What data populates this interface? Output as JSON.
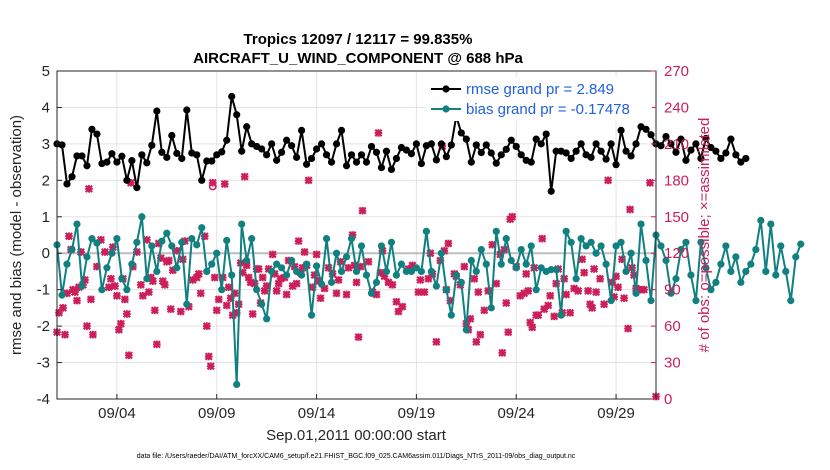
{
  "chart_data": {
    "type": "line",
    "title": "Tropics 12097 / 12117 = 99.835%",
    "subtitle": "AIRCRAFT_U_WIND_COMPONENT @ 688 hPa",
    "xlabel": "Sep.01,2011 00:00:00 start",
    "ylabel_left": "rmse and bias (model - observation)",
    "ylabel_right": "# of obs: o=possible; ×=assimilated",
    "footer": "data file: /Users/raeder/DAI/ATM_forcXX/CAM6_setup/f.e21.FHIST_BGC.f09_025.CAM6assim.011/Diags_NTrS_2011-09/obs_diag_output.nc",
    "xlim": [
      1.0,
      31.0
    ],
    "ylim_left": [
      -4,
      5
    ],
    "ylim_right": [
      0,
      270
    ],
    "x_ticks": [
      4,
      9,
      14,
      19,
      24,
      29
    ],
    "x_tick_labels": [
      "09/04",
      "09/09",
      "09/14",
      "09/19",
      "09/24",
      "09/29"
    ],
    "y_ticks_left": [
      -4,
      -3,
      -2,
      -1,
      0,
      1,
      2,
      3,
      4,
      5
    ],
    "y_tick_labels_left": [
      "-4",
      "-3",
      "-2",
      "-1",
      "0",
      "1",
      "2",
      "3",
      "4",
      "5"
    ],
    "y_ticks_right": [
      0,
      30,
      60,
      90,
      120,
      150,
      180,
      210,
      240,
      270
    ],
    "y_tick_labels_right": [
      "0",
      "30",
      "60",
      "90",
      "120",
      "150",
      "180",
      "210",
      "240",
      "270"
    ],
    "grid": true,
    "legend_position": "top-right",
    "x_start": 1.0,
    "x_step": 0.25,
    "series": [
      {
        "name": "rmse grand pr = 2.849",
        "axis": "left",
        "color": "#000000",
        "marker": "circle",
        "values": [
          3.0,
          2.97,
          1.9,
          2.1,
          2.67,
          2.67,
          2.4,
          3.4,
          3.27,
          2.46,
          2.5,
          2.73,
          2.5,
          2.66,
          2.0,
          2.54,
          1.8,
          2.7,
          2.48,
          2.96,
          3.9,
          2.77,
          2.63,
          3.23,
          2.74,
          2.6,
          3.93,
          2.75,
          2.7,
          2.0,
          2.53,
          2.53,
          2.7,
          2.78,
          3.1,
          4.3,
          3.8,
          2.8,
          3.47,
          3.0,
          2.93,
          2.86,
          2.7,
          3.0,
          2.55,
          2.77,
          3.1,
          2.95,
          2.63,
          3.37,
          2.44,
          2.6,
          2.86,
          3.0,
          2.7,
          2.5,
          3.0,
          3.37,
          2.4,
          2.7,
          2.5,
          2.7,
          2.5,
          2.93,
          2.77,
          2.35,
          2.8,
          2.3,
          2.6,
          2.9,
          2.83,
          2.73,
          3.0,
          2.46,
          2.95,
          3.0,
          2.56,
          3.0,
          2.65,
          2.97,
          3.76,
          3.3,
          3.13,
          2.5,
          2.97,
          2.76,
          2.97,
          2.75,
          2.47,
          2.7,
          2.85,
          3.1,
          2.93,
          2.7,
          2.55,
          2.5,
          3.13,
          3.0,
          3.27,
          1.7,
          2.8,
          2.8,
          2.75,
          2.6,
          2.8,
          3.0,
          2.7,
          2.63,
          3.0,
          2.8,
          2.58,
          3.0,
          2.43,
          3.37,
          2.8,
          2.67,
          3.0,
          3.47,
          3.4,
          3.25,
          3.0,
          2.95,
          3.2,
          3.0,
          2.77,
          3.13,
          2.55,
          2.83,
          3.0,
          2.6,
          3.15,
          2.9,
          2.8,
          2.6,
          2.75,
          3.13,
          2.7,
          2.5,
          2.6
        ],
        "label": "rmse grand pr = 2.849"
      },
      {
        "name": "bias grand pr = -0.17478",
        "axis": "left",
        "color": "#118080",
        "marker": "circle",
        "values": [
          0.23,
          -1.15,
          -0.3,
          0.1,
          0.8,
          -0.9,
          -0.1,
          0.4,
          0.28,
          -1.0,
          -0.4,
          0.0,
          0.4,
          -0.7,
          -1.0,
          -0.3,
          0.3,
          1.0,
          -0.7,
          0.2,
          -0.5,
          0.33,
          0.55,
          0.2,
          -0.4,
          0.3,
          -1.4,
          0.4,
          0.23,
          0.7,
          -0.5,
          -0.3,
          0.0,
          -1.0,
          0.35,
          -0.6,
          -3.6,
          0.8,
          -0.2,
          0.4,
          -1.0,
          -1.4,
          -1.8,
          -0.5,
          -0.3,
          -0.4,
          -0.6,
          -0.2,
          -0.5,
          -0.6,
          -0.3,
          -1.7,
          -0.35,
          -0.85,
          0.4,
          -0.8,
          0.0,
          -0.5,
          -0.1,
          0.4,
          -0.5,
          0.2,
          -0.6,
          -1.1,
          -0.8,
          0.2,
          -0.5,
          0.3,
          -0.6,
          -0.3,
          -0.5,
          -0.5,
          -0.4,
          -0.5,
          0.6,
          -0.5,
          -0.9,
          0.0,
          -1.0,
          -1.7,
          -0.6,
          -0.8,
          -2.1,
          -0.2,
          -0.5,
          0.1,
          -0.3,
          -1.5,
          0.6,
          -0.3,
          0.4,
          -0.2,
          -0.4,
          0.1,
          -0.3,
          0.2,
          -1.0,
          -0.4,
          -0.5,
          -0.45,
          -0.45,
          -1.7,
          0.6,
          0.3,
          -0.7,
          0.4,
          0.2,
          0.3,
          0.0,
          0.2,
          -0.3,
          -1.3,
          0.2,
          0.3,
          -0.5,
          0.0,
          -1.1,
          0.8,
          -0.2,
          -1.3,
          0.5,
          0.2,
          -0.2,
          -1.1,
          -0.7,
          0.1,
          0.3,
          -0.6,
          -1.3,
          0.3,
          -0.4,
          -1.0,
          -0.8,
          -0.3,
          0.2,
          -0.5,
          -0.1,
          -0.8,
          -0.5,
          -0.3,
          0.1,
          0.9,
          -0.5,
          0.8,
          -0.6,
          0.2,
          -0.5,
          -1.3,
          -0.1,
          0.25
        ],
        "label": "bias grand pr = -0.17478"
      }
    ],
    "scatter_series": [
      {
        "name": "assimilated obs count",
        "axis": "right",
        "color": "#cc1f5a",
        "marker": "x",
        "points": [
          [
            1.0,
            55
          ],
          [
            1.1,
            71
          ],
          [
            1.3,
            75
          ],
          [
            1.4,
            53
          ],
          [
            1.5,
            87
          ],
          [
            1.6,
            134
          ],
          [
            1.7,
            123
          ],
          [
            1.8,
            90
          ],
          [
            1.9,
            88
          ],
          [
            2.0,
            81
          ],
          [
            2.1,
            92
          ],
          [
            2.2,
            121
          ],
          [
            2.3,
            94
          ],
          [
            2.4,
            98
          ],
          [
            2.5,
            60
          ],
          [
            2.6,
            173
          ],
          [
            2.7,
            82
          ],
          [
            2.8,
            53
          ],
          [
            3.0,
            109
          ],
          [
            3.2,
            131
          ],
          [
            3.4,
            121
          ],
          [
            3.6,
            92
          ],
          [
            3.7,
            99
          ],
          [
            3.8,
            125
          ],
          [
            3.9,
            93
          ],
          [
            4.0,
            85
          ],
          [
            4.1,
            57
          ],
          [
            4.2,
            62
          ],
          [
            4.3,
            99
          ],
          [
            4.4,
            82
          ],
          [
            4.5,
            70
          ],
          [
            4.6,
            36
          ],
          [
            4.7,
            178
          ],
          [
            4.8,
            109
          ],
          [
            5.0,
            121
          ],
          [
            5.2,
            94
          ],
          [
            5.3,
            85
          ],
          [
            5.5,
            131
          ],
          [
            5.6,
            88
          ],
          [
            5.7,
            100
          ],
          [
            5.8,
            97
          ],
          [
            5.9,
            73
          ],
          [
            6.0,
            45
          ],
          [
            6.1,
            128
          ],
          [
            6.2,
            116
          ],
          [
            6.3,
            97
          ],
          [
            6.4,
            94
          ],
          [
            6.5,
            113
          ],
          [
            6.6,
            114
          ],
          [
            6.7,
            74
          ],
          [
            6.8,
            106
          ],
          [
            7.0,
            122
          ],
          [
            7.2,
            72
          ],
          [
            7.3,
            115
          ],
          [
            7.4,
            130
          ],
          [
            7.6,
            76
          ],
          [
            7.8,
            98
          ],
          [
            8.0,
            100
          ],
          [
            8.1,
            103
          ],
          [
            8.2,
            87
          ],
          [
            8.4,
            134
          ],
          [
            8.5,
            60
          ],
          [
            8.6,
            35
          ],
          [
            8.7,
            27
          ],
          [
            8.8,
            178
          ],
          [
            8.9,
            100
          ],
          [
            9.0,
            73
          ],
          [
            9.1,
            82
          ],
          [
            9.3,
            100
          ],
          [
            9.4,
            177
          ],
          [
            9.5,
            77
          ],
          [
            9.6,
            92
          ],
          [
            9.7,
            83
          ],
          [
            9.8,
            69
          ],
          [
            9.9,
            87
          ],
          [
            10.0,
            71
          ],
          [
            10.1,
            78
          ],
          [
            10.2,
            112
          ],
          [
            10.3,
            104
          ],
          [
            10.4,
            183
          ],
          [
            10.5,
            110
          ],
          [
            10.6,
            100
          ],
          [
            10.7,
            96
          ],
          [
            10.8,
            70
          ],
          [
            10.9,
            95
          ],
          [
            11.0,
            107
          ],
          [
            11.1,
            107
          ],
          [
            11.2,
            79
          ],
          [
            11.3,
            100
          ],
          [
            11.4,
            89
          ],
          [
            11.5,
            93
          ],
          [
            11.6,
            107
          ],
          [
            11.8,
            119
          ],
          [
            11.9,
            103
          ],
          [
            12.0,
            89
          ],
          [
            12.1,
            95
          ],
          [
            12.2,
            99
          ],
          [
            12.4,
            100
          ],
          [
            12.5,
            86
          ],
          [
            12.6,
            114
          ],
          [
            12.8,
            93
          ],
          [
            12.9,
            109
          ],
          [
            13.0,
            95
          ],
          [
            13.1,
            130
          ],
          [
            13.2,
            104
          ],
          [
            13.3,
            108
          ],
          [
            13.4,
            121
          ],
          [
            13.5,
            110
          ],
          [
            13.6,
            180
          ],
          [
            13.8,
            92
          ],
          [
            13.9,
            102
          ],
          [
            14.0,
            119
          ],
          [
            14.1,
            97
          ],
          [
            14.2,
            83
          ],
          [
            14.4,
            91
          ],
          [
            14.6,
            108
          ],
          [
            14.8,
            103
          ],
          [
            15.0,
            87
          ],
          [
            15.1,
            98
          ],
          [
            15.2,
            113
          ],
          [
            15.5,
            86
          ],
          [
            15.6,
            108
          ],
          [
            15.8,
            135
          ],
          [
            15.9,
            110
          ],
          [
            16.0,
            96
          ],
          [
            16.1,
            51
          ],
          [
            16.2,
            109
          ],
          [
            16.3,
            155
          ],
          [
            16.6,
            113
          ],
          [
            16.8,
            88
          ],
          [
            17.0,
            86
          ],
          [
            17.1,
            219
          ],
          [
            17.2,
            104
          ],
          [
            17.3,
            122
          ],
          [
            17.4,
            101
          ],
          [
            17.6,
            96
          ],
          [
            17.8,
            94
          ],
          [
            18.0,
            80
          ],
          [
            18.1,
            72
          ],
          [
            18.3,
            76
          ],
          [
            18.6,
            107
          ],
          [
            18.8,
            110
          ],
          [
            19.1,
            88
          ],
          [
            19.2,
            98
          ],
          [
            19.4,
            88
          ],
          [
            19.6,
            99
          ],
          [
            19.7,
            120
          ],
          [
            19.8,
            103
          ],
          [
            20.0,
            47
          ],
          [
            20.2,
            114
          ],
          [
            20.3,
            208
          ],
          [
            20.4,
            122
          ],
          [
            20.5,
            90
          ],
          [
            20.6,
            128
          ],
          [
            20.7,
            81
          ],
          [
            20.9,
            103
          ],
          [
            21.0,
            101
          ],
          [
            21.2,
            94
          ],
          [
            21.4,
            109
          ],
          [
            21.5,
            62
          ],
          [
            21.6,
            57
          ],
          [
            21.7,
            66
          ],
          [
            21.9,
            99
          ],
          [
            22.0,
            47
          ],
          [
            22.1,
            88
          ],
          [
            22.2,
            53
          ],
          [
            22.4,
            73
          ],
          [
            22.6,
            89
          ],
          [
            22.8,
            127
          ],
          [
            23.0,
            95
          ],
          [
            23.2,
            119
          ],
          [
            23.3,
            38
          ],
          [
            23.4,
            123
          ],
          [
            23.5,
            79
          ],
          [
            23.6,
            55
          ],
          [
            23.7,
            148
          ],
          [
            23.8,
            150
          ],
          [
            24.0,
            109
          ],
          [
            24.2,
            85
          ],
          [
            24.4,
            87
          ],
          [
            24.5,
            103
          ],
          [
            24.6,
            89
          ],
          [
            24.7,
            63
          ],
          [
            24.8,
            59
          ],
          [
            24.9,
            108
          ],
          [
            25.0,
            69
          ],
          [
            25.1,
            69
          ],
          [
            25.3,
            132
          ],
          [
            25.4,
            74
          ],
          [
            25.6,
            77
          ],
          [
            25.7,
            85
          ],
          [
            25.9,
            68
          ],
          [
            26.0,
            95
          ],
          [
            26.1,
            107
          ],
          [
            26.3,
            71
          ],
          [
            26.4,
            99
          ],
          [
            26.5,
            86
          ],
          [
            26.7,
            71
          ],
          [
            26.9,
            91
          ],
          [
            27.1,
            89
          ],
          [
            27.3,
            115
          ],
          [
            27.4,
            104
          ],
          [
            27.6,
            89
          ],
          [
            27.7,
            78
          ],
          [
            27.8,
            75
          ],
          [
            27.9,
            107
          ],
          [
            28.0,
            88
          ],
          [
            28.2,
            99
          ],
          [
            28.4,
            78
          ],
          [
            28.6,
            180
          ],
          [
            28.8,
            96
          ],
          [
            28.9,
            84
          ],
          [
            29.0,
            101
          ],
          [
            29.1,
            92
          ],
          [
            29.3,
            115
          ],
          [
            29.4,
            83
          ],
          [
            29.6,
            58
          ],
          [
            29.7,
            156
          ],
          [
            29.8,
            108
          ],
          [
            29.9,
            102
          ],
          [
            30.0,
            91
          ],
          [
            30.2,
            90
          ],
          [
            30.4,
            90
          ],
          [
            30.7,
            178
          ],
          [
            31.0,
            2
          ]
        ]
      },
      {
        "name": "possible obs count",
        "axis": "right",
        "color": "#cc1f5a",
        "marker": "o",
        "points": [
          [
            8.8,
            175
          ]
        ]
      }
    ],
    "zero_line": 0
  }
}
